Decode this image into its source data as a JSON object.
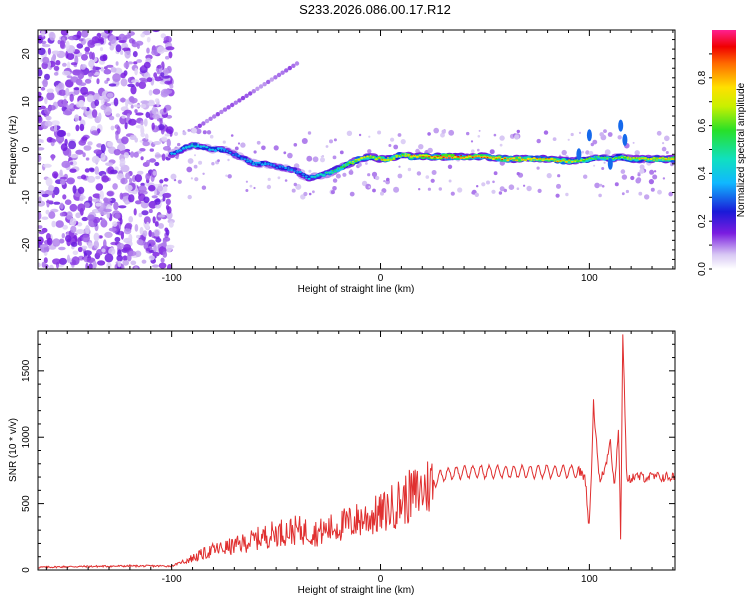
{
  "title": "S233.2026.086.00.17.R12",
  "chart_data": [
    {
      "type": "heatmap",
      "xlabel": "Height of straight line (km)",
      "ylabel": "Frequency (Hz)",
      "xlim": [
        -164,
        141
      ],
      "ylim": [
        -25,
        25
      ],
      "xticks": [
        -100,
        0,
        100
      ],
      "yticks": [
        -20,
        -10,
        0,
        10,
        20
      ],
      "colorbar": {
        "label": "Normalized spectral amplitude",
        "ticks": [
          0.0,
          0.2,
          0.4,
          0.6,
          0.8
        ],
        "range": [
          0,
          1
        ]
      },
      "ridge": {
        "height_km": [
          -100,
          -95,
          -90,
          -85,
          -80,
          -75,
          -70,
          -65,
          -60,
          -55,
          -50,
          -45,
          -40,
          -35,
          -30,
          -25,
          -20,
          -15,
          -10,
          -5,
          0,
          5,
          10,
          15,
          20,
          25,
          30,
          40,
          50,
          60,
          70,
          80,
          90,
          100,
          105,
          110,
          115,
          120,
          130,
          141
        ],
        "freq_hz": [
          -1,
          0,
          1,
          0.5,
          0,
          0,
          -1,
          -2,
          -3,
          -3,
          -3.5,
          -4,
          -4.5,
          -6,
          -5.5,
          -5,
          -4,
          -3,
          -2,
          -1.5,
          -2,
          -2,
          -1,
          -1.5,
          -1.5,
          -1.5,
          -1.5,
          -1.5,
          -1.5,
          -2,
          -2,
          -2,
          -2.5,
          -2,
          -1.5,
          -2,
          -1.5,
          -2,
          -2,
          -2
        ],
        "amplitude": [
          0.4,
          0.45,
          0.5,
          0.45,
          0.45,
          0.4,
          0.35,
          0.4,
          0.45,
          0.4,
          0.35,
          0.4,
          0.35,
          0.45,
          0.5,
          0.55,
          0.6,
          0.7,
          0.8,
          0.75,
          0.85,
          0.8,
          0.75,
          0.85,
          0.9,
          0.95,
          1.0,
          0.95,
          0.9,
          0.9,
          0.85,
          0.85,
          0.8,
          0.7,
          0.6,
          0.65,
          0.7,
          0.75,
          0.8,
          0.85
        ]
      }
    },
    {
      "type": "line",
      "xlabel": "Height of straight line (km)",
      "ylabel": "SNR (10 * v/v)",
      "xlim": [
        -164,
        141
      ],
      "ylim": [
        0,
        1800
      ],
      "xticks": [
        -100,
        0,
        100
      ],
      "yticks": [
        0,
        500,
        1000,
        1500
      ],
      "color": "#e03030",
      "series": [
        {
          "name": "SNR",
          "x": [
            -164,
            -150,
            -120,
            -100,
            -95,
            -90,
            -80,
            -70,
            -60,
            -50,
            -40,
            -30,
            -20,
            -10,
            0,
            10,
            20,
            30,
            40,
            60,
            80,
            95,
            98,
            100,
            102,
            105,
            108,
            110,
            112,
            114,
            115,
            116,
            118,
            120,
            130,
            141
          ],
          "y": [
            20,
            25,
            30,
            30,
            60,
            90,
            150,
            180,
            230,
            280,
            300,
            280,
            330,
            380,
            420,
            520,
            600,
            720,
            740,
            740,
            740,
            740,
            700,
            300,
            1250,
            650,
            800,
            1000,
            600,
            1100,
            200,
            1800,
            650,
            700,
            700,
            700
          ]
        }
      ]
    }
  ]
}
